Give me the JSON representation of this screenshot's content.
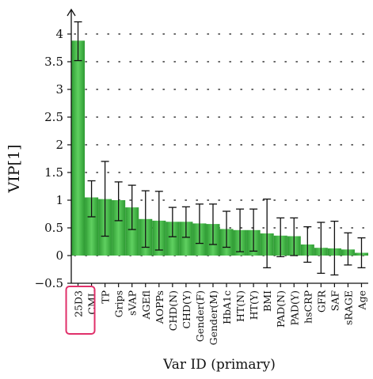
{
  "chart_data": {
    "type": "bar",
    "title": "",
    "xlabel": "Var ID (primary)",
    "ylabel": "VIP[1]",
    "ylim": [
      -0.5,
      4.3
    ],
    "y_ticks": [
      4,
      3.5,
      3,
      2.5,
      2,
      1.5,
      1,
      0.5,
      0,
      -0.5
    ],
    "y_tick_labels": [
      "4",
      "3.5",
      "3",
      "2.5",
      "2",
      "1.5",
      "1",
      "0.5",
      "0",
      "−0.5"
    ],
    "grid": "dotted horizontal",
    "highlighted_category": "25D3",
    "categories": [
      "25D3",
      "CML",
      "TP",
      "Grips",
      "sVAP",
      "AGEfl",
      "AOPPs",
      "CHD(N)",
      "CHD(Y)",
      "Gender(F)",
      "Gender(M)",
      "HbA1c",
      "HT(N)",
      "HT(Y)",
      "BMI",
      "PAD(N)",
      "PAD(Y)",
      "hsCRP",
      "GFR",
      "SAF",
      "sRAGE",
      "Age"
    ],
    "tick_label_every": 2,
    "series": [
      {
        "values": [
          3.88,
          1.05,
          1.02,
          1.0,
          0.87,
          0.66,
          0.63,
          0.61,
          0.61,
          0.58,
          0.57,
          0.48,
          0.46,
          0.46,
          0.4,
          0.36,
          0.35,
          0.2,
          0.14,
          0.13,
          0.11,
          0.05
        ],
        "error_low": [
          3.52,
          0.7,
          0.35,
          0.63,
          0.47,
          0.15,
          0.1,
          0.34,
          0.33,
          0.22,
          0.2,
          0.15,
          0.07,
          0.08,
          -0.22,
          -0.02,
          0.0,
          -0.12,
          -0.32,
          -0.35,
          -0.17,
          -0.22
        ],
        "error_high": [
          4.22,
          1.35,
          1.7,
          1.33,
          1.27,
          1.17,
          1.16,
          0.87,
          0.88,
          0.93,
          0.93,
          0.8,
          0.84,
          0.84,
          1.02,
          0.68,
          0.68,
          0.52,
          0.6,
          0.62,
          0.41,
          0.32
        ]
      }
    ],
    "colors": {
      "bar": "#3cb53f",
      "bar_light": "#5fd060",
      "bar_dark": "#2e9b33",
      "error_bar": "#111111",
      "highlight": "#e0306a",
      "grid": "#333333"
    }
  }
}
